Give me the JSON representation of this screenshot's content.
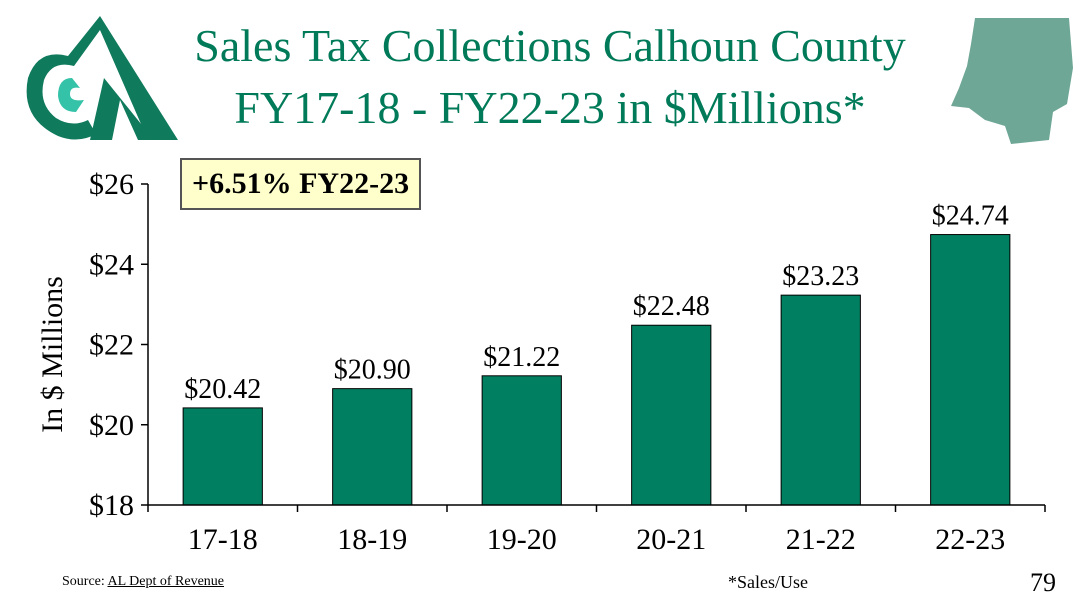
{
  "title_line1": "Sales Tax Collections Calhoun County",
  "title_line2": "FY17-18 - FY22-23 in $Millions*",
  "callout": "+6.51% FY22-23",
  "source_prefix": "Source: ",
  "source_link": "AL Dept of Revenue",
  "footnote": "*Sales/Use",
  "page_number": "79",
  "colors": {
    "bar": "#008060",
    "title": "#007a58",
    "map": "#6fa796",
    "callout_bg": "#ffffcc"
  },
  "chart_data": {
    "type": "bar",
    "categories": [
      "17-18",
      "18-19",
      "19-20",
      "20-21",
      "21-22",
      "22-23"
    ],
    "values": [
      20.42,
      20.9,
      21.22,
      22.48,
      23.23,
      24.74
    ],
    "data_labels": [
      "$20.42",
      "$20.90",
      "$21.22",
      "$22.48",
      "$23.23",
      "$24.74"
    ],
    "ylim": [
      18,
      26
    ],
    "yticks": [
      18,
      20,
      22,
      24,
      26
    ],
    "ytick_labels": [
      "$18",
      "$20",
      "$22",
      "$24",
      "$26"
    ],
    "ylabel": "In $ Millions",
    "xlabel": "",
    "grid": false,
    "legend": "none"
  }
}
